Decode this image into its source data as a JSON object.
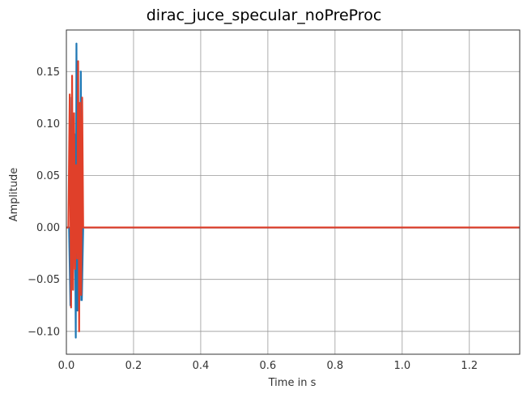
{
  "chart_data": {
    "type": "line",
    "title": "dirac_juce_specular_noPreProc",
    "xlabel": "Time in s",
    "ylabel": "Amplitude",
    "xlim": [
      0,
      1.35
    ],
    "ylim": [
      -0.122,
      0.19
    ],
    "xticks": [
      0,
      0.2,
      0.4,
      0.6,
      0.8,
      1.0,
      1.2
    ],
    "xtick_labels": [
      "0.0",
      "0.2",
      "0.4",
      "0.6",
      "0.8",
      "1.0",
      "1.2"
    ],
    "yticks": [
      -0.1,
      -0.05,
      0,
      0.05,
      0.1,
      0.15
    ],
    "ytick_labels": [
      "−0.10",
      "−0.05",
      "0.00",
      "0.05",
      "0.10",
      "0.15"
    ],
    "grid": true,
    "legend": "none",
    "colors": {
      "series_1": "#1f77b4",
      "series_2": "#e0402a",
      "grid": "#999999",
      "axes": "#333333"
    },
    "series": [
      {
        "color": "#1f77b4",
        "x": [
          0,
          0.008,
          0.012,
          0.016,
          0.02,
          0.024,
          0.028,
          0.03,
          0.033,
          0.036,
          0.04,
          0.043,
          0.046,
          0.05,
          0.06,
          0.1,
          0.3,
          1.35
        ],
        "y": [
          0,
          0,
          -0.075,
          0.125,
          -0.06,
          0.09,
          -0.106,
          0.177,
          -0.08,
          0.12,
          -0.07,
          0.15,
          -0.07,
          0.0,
          0.0,
          0.0,
          0.0,
          0.0
        ]
      },
      {
        "color": "#e0402a",
        "x": [
          0,
          0.006,
          0.01,
          0.014,
          0.017,
          0.02,
          0.023,
          0.026,
          0.029,
          0.032,
          0.035,
          0.038,
          0.041,
          0.044,
          0.047,
          0.05,
          0.06,
          0.1,
          0.3,
          1.35
        ],
        "y": [
          0,
          0,
          0.128,
          -0.077,
          0.146,
          -0.06,
          0.11,
          -0.04,
          0.06,
          -0.03,
          0.16,
          -0.1,
          0.12,
          -0.065,
          0.125,
          0.0,
          0.0,
          0.0,
          0.0,
          0.0
        ]
      }
    ]
  }
}
